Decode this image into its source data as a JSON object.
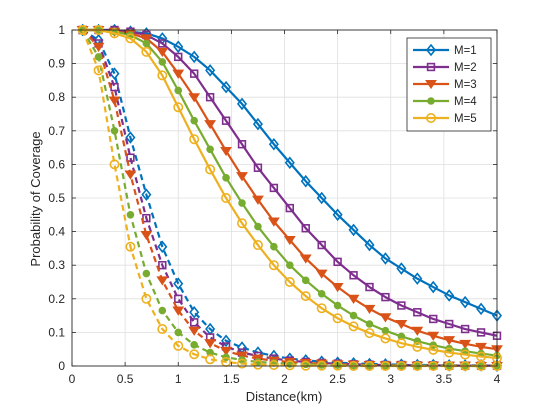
{
  "chart_data": {
    "type": "line",
    "title": "",
    "xlabel": "Distance(km)",
    "ylabel": "Probability of Coverage",
    "xlim": [
      0,
      4
    ],
    "ylim": [
      0,
      1
    ],
    "xticks": [
      0,
      0.5,
      1,
      1.5,
      2,
      2.5,
      3,
      3.5,
      4
    ],
    "xticklabels": [
      "0",
      "0.5",
      "1",
      "1.5",
      "2",
      "2.5",
      "3",
      "3.5",
      "4"
    ],
    "yticks": [
      0,
      0.1,
      0.2,
      0.3,
      0.4,
      0.5,
      0.6,
      0.7,
      0.8,
      0.9,
      1
    ],
    "yticklabels": [
      "0",
      "0.1",
      "0.2",
      "0.3",
      "0.4",
      "0.5",
      "0.6",
      "0.7",
      "0.8",
      "0.9",
      "1"
    ],
    "grid": true,
    "legend_position": "top-right",
    "x_solid": [
      0.1,
      0.25,
      0.4,
      0.55,
      0.7,
      0.85,
      1.0,
      1.15,
      1.3,
      1.45,
      1.6,
      1.75,
      1.9,
      2.05,
      2.2,
      2.35,
      2.5,
      2.65,
      2.8,
      2.95,
      3.1,
      3.25,
      3.4,
      3.55,
      3.7,
      3.85,
      4.0
    ],
    "x_dashed": [
      0.1,
      0.25,
      0.4,
      0.55,
      0.7,
      0.85,
      1.0,
      1.15,
      1.3,
      1.45,
      1.6,
      1.75,
      1.9,
      2.05,
      2.2,
      2.35,
      2.5,
      2.65,
      2.8,
      2.95,
      3.1,
      3.25,
      3.4,
      3.55,
      3.7,
      3.85,
      4.0
    ],
    "series": [
      {
        "name": "M=1",
        "color": "#0072BD",
        "marker": "diamond",
        "solid": [
          1.0,
          1.0,
          1.0,
          0.995,
          0.99,
          0.975,
          0.95,
          0.92,
          0.88,
          0.83,
          0.78,
          0.72,
          0.66,
          0.605,
          0.55,
          0.5,
          0.45,
          0.405,
          0.36,
          0.32,
          0.29,
          0.26,
          0.235,
          0.21,
          0.19,
          0.17,
          0.15
        ],
        "dashed": [
          1.0,
          0.97,
          0.87,
          0.68,
          0.51,
          0.355,
          0.245,
          0.16,
          0.11,
          0.075,
          0.055,
          0.04,
          0.03,
          0.022,
          0.017,
          0.013,
          0.01,
          0.008,
          0.006,
          0.005,
          0.004,
          0.003,
          0.003,
          0.002,
          0.002,
          0.002,
          0.001
        ]
      },
      {
        "name": "M=2",
        "color": "#7E2F8E",
        "marker": "square",
        "solid": [
          1.0,
          1.0,
          1.0,
          0.995,
          0.985,
          0.96,
          0.92,
          0.87,
          0.8,
          0.73,
          0.66,
          0.59,
          0.53,
          0.47,
          0.41,
          0.36,
          0.31,
          0.27,
          0.235,
          0.205,
          0.18,
          0.16,
          0.14,
          0.125,
          0.11,
          0.1,
          0.09
        ],
        "dashed": [
          1.0,
          0.96,
          0.83,
          0.62,
          0.44,
          0.3,
          0.2,
          0.13,
          0.085,
          0.058,
          0.04,
          0.03,
          0.022,
          0.016,
          0.012,
          0.009,
          0.007,
          0.005,
          0.004,
          0.003,
          0.003,
          0.002,
          0.002,
          0.001,
          0.001,
          0.001,
          0.001
        ]
      },
      {
        "name": "M=3",
        "color": "#D95319",
        "marker": "triangle-down",
        "solid": [
          1.0,
          1.0,
          0.995,
          0.99,
          0.975,
          0.935,
          0.87,
          0.8,
          0.72,
          0.64,
          0.565,
          0.495,
          0.43,
          0.375,
          0.32,
          0.275,
          0.235,
          0.2,
          0.17,
          0.145,
          0.125,
          0.105,
          0.09,
          0.077,
          0.066,
          0.057,
          0.05
        ],
        "dashed": [
          1.0,
          0.95,
          0.79,
          0.57,
          0.39,
          0.255,
          0.165,
          0.105,
          0.068,
          0.045,
          0.031,
          0.022,
          0.016,
          0.012,
          0.009,
          0.007,
          0.005,
          0.004,
          0.003,
          0.002,
          0.002,
          0.001,
          0.001,
          0.001,
          0.001,
          0.0,
          0.0
        ]
      },
      {
        "name": "M=4",
        "color": "#77AC30",
        "marker": "circle-filled",
        "solid": [
          1.0,
          1.0,
          0.995,
          0.985,
          0.96,
          0.905,
          0.82,
          0.73,
          0.645,
          0.56,
          0.485,
          0.415,
          0.355,
          0.3,
          0.255,
          0.215,
          0.18,
          0.15,
          0.125,
          0.105,
          0.088,
          0.074,
          0.062,
          0.052,
          0.044,
          0.037,
          0.031
        ],
        "dashed": [
          1.0,
          0.92,
          0.7,
          0.45,
          0.275,
          0.165,
          0.1,
          0.063,
          0.04,
          0.026,
          0.018,
          0.012,
          0.009,
          0.006,
          0.005,
          0.003,
          0.003,
          0.002,
          0.002,
          0.001,
          0.001,
          0.001,
          0.001,
          0.0,
          0.0,
          0.0,
          0.0
        ]
      },
      {
        "name": "M=5",
        "color": "#EDB120",
        "marker": "circle",
        "solid": [
          1.0,
          1.0,
          0.99,
          0.975,
          0.935,
          0.865,
          0.77,
          0.675,
          0.585,
          0.5,
          0.425,
          0.36,
          0.3,
          0.25,
          0.208,
          0.172,
          0.142,
          0.118,
          0.098,
          0.082,
          0.068,
          0.057,
          0.048,
          0.04,
          0.034,
          0.028,
          0.024
        ],
        "dashed": [
          1.0,
          0.88,
          0.6,
          0.355,
          0.2,
          0.11,
          0.06,
          0.035,
          0.02,
          0.012,
          0.007,
          0.004,
          0.003,
          0.002,
          0.001,
          0.001,
          0.001,
          0.0,
          0.0,
          0.0,
          0.0,
          0.0,
          0.0,
          0.0,
          0.0,
          0.0,
          0.0
        ]
      }
    ]
  }
}
